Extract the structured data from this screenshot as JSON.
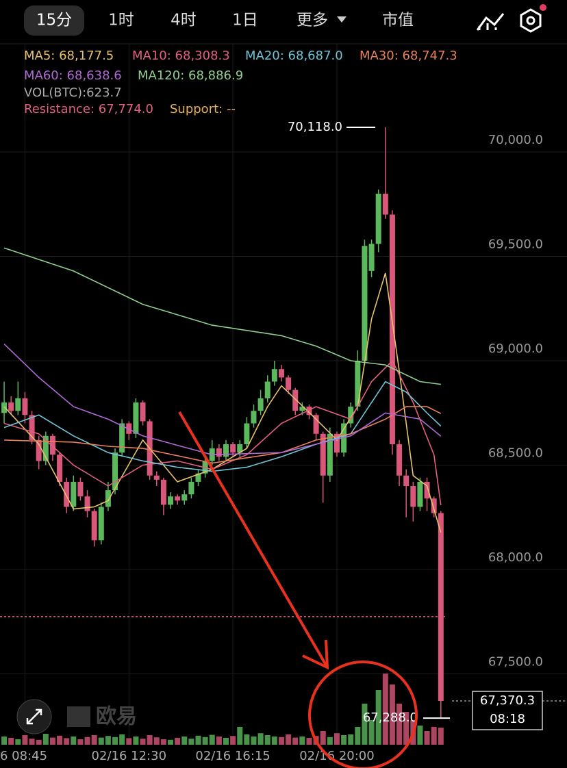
{
  "toolbar": {
    "tabs": [
      "15分",
      "1时",
      "4时",
      "1日",
      "更多",
      "市值"
    ]
  },
  "watermark": "欧易",
  "chart_data": {
    "type": "candlestick",
    "ylim": [
      67200,
      70180
    ],
    "yticks": [
      {
        "value": 70000,
        "label": "70,000.0"
      },
      {
        "value": 69500,
        "label": "69,500.0"
      },
      {
        "value": 69000,
        "label": "69,000.0"
      },
      {
        "value": 68500,
        "label": "68,500.0"
      },
      {
        "value": 68000,
        "label": "68,000.0"
      },
      {
        "value": 67500,
        "label": "67,500.0"
      }
    ],
    "xlim": [
      -0.6,
      64.6
    ],
    "xticks": [
      {
        "value": 3,
        "label": "6 08:45"
      },
      {
        "value": 18,
        "label": "02/16 12:30"
      },
      {
        "value": 33,
        "label": "02/16 16:15"
      },
      {
        "value": 48,
        "label": "02/16 20:00"
      }
    ],
    "up_color": "#5cb85c",
    "down_color": "#d9577a",
    "open": [
      68750,
      68800,
      68760,
      68820,
      68740,
      68620,
      68520,
      68640,
      68550,
      68420,
      68300,
      68420,
      68350,
      68280,
      68140,
      68300,
      68380,
      68560,
      68700,
      68650,
      68800,
      68710,
      68450,
      68430,
      68310,
      68350,
      68330,
      68360,
      68420,
      68460,
      68520,
      68580,
      68540,
      68600,
      68560,
      68600,
      68700,
      68760,
      68820,
      68900,
      68960,
      68920,
      68860,
      68760,
      68780,
      68740,
      68650,
      68450,
      68650,
      68560,
      68700,
      68780,
      69000,
      69430,
      69560,
      69800,
      69700,
      68600,
      68450,
      68400,
      68300,
      68420,
      68340,
      68270
    ],
    "high": [
      68900,
      68830,
      68900,
      68850,
      68760,
      68640,
      68660,
      68650,
      68560,
      68440,
      68450,
      68440,
      68380,
      68290,
      68320,
      68420,
      68580,
      68720,
      68710,
      68820,
      68810,
      68720,
      68470,
      68440,
      68370,
      68360,
      68380,
      68440,
      68480,
      68540,
      68620,
      68600,
      68620,
      68610,
      68620,
      68730,
      68790,
      68860,
      68930,
      69000,
      68980,
      68930,
      68870,
      68800,
      68790,
      68750,
      68660,
      68680,
      68660,
      68720,
      68800,
      69050,
      69580,
      69580,
      69820,
      70118,
      69720,
      68620,
      68480,
      68420,
      68440,
      68440,
      68350,
      68280
    ],
    "low": [
      68700,
      68740,
      68740,
      68700,
      68600,
      68480,
      68500,
      68520,
      68400,
      68270,
      68280,
      68330,
      68250,
      68110,
      68120,
      68280,
      68360,
      68540,
      68620,
      68630,
      68690,
      68430,
      68400,
      68260,
      68290,
      68310,
      68310,
      68340,
      68400,
      68440,
      68500,
      68520,
      68520,
      68540,
      68540,
      68580,
      68680,
      68740,
      68800,
      68880,
      68900,
      68840,
      68740,
      68740,
      68720,
      68620,
      68320,
      68420,
      68540,
      68540,
      68680,
      68760,
      68980,
      69400,
      69520,
      69680,
      68550,
      68400,
      68250,
      68230,
      68280,
      68280,
      68250,
      67288
    ],
    "close": [
      68800,
      68760,
      68820,
      68740,
      68620,
      68520,
      68640,
      68550,
      68420,
      68300,
      68420,
      68350,
      68280,
      68140,
      68300,
      68380,
      68560,
      68700,
      68650,
      68800,
      68710,
      68450,
      68430,
      68310,
      68350,
      68330,
      68360,
      68420,
      68460,
      68520,
      68580,
      68540,
      68600,
      68560,
      68600,
      68700,
      68760,
      68820,
      68900,
      68960,
      68920,
      68860,
      68760,
      68780,
      68740,
      68650,
      68450,
      68650,
      68560,
      68700,
      68780,
      69000,
      69550,
      69560,
      69800,
      69700,
      68600,
      68450,
      68400,
      68300,
      68420,
      68340,
      68270,
      67370.3
    ],
    "volume": [
      300,
      250,
      200,
      350,
      220,
      180,
      400,
      260,
      330,
      240,
      300,
      200,
      280,
      350,
      260,
      320,
      280,
      380,
      240,
      300,
      220,
      350,
      270,
      200,
      180,
      250,
      300,
      220,
      330,
      280,
      360,
      300,
      250,
      320,
      650,
      380,
      300,
      420,
      350,
      300,
      280,
      380,
      260,
      300,
      250,
      320,
      500,
      280,
      420,
      350,
      380,
      650,
      1500,
      900,
      2000,
      2600,
      2200,
      1500,
      1200,
      900,
      700,
      500,
      650,
      623.7
    ],
    "volume_label": "VOL(BTC):623.7",
    "series": [
      {
        "name": "MA5: 68,177.5",
        "color": "#e8c36b",
        "x": [
          0,
          5,
          10,
          13,
          15,
          20,
          25,
          30,
          35,
          38,
          40,
          45,
          48,
          51,
          53,
          55,
          57,
          59,
          61,
          63
        ],
        "values": [
          68780,
          68600,
          68290,
          68300,
          68330,
          68620,
          68420,
          68480,
          68580,
          68780,
          68880,
          68720,
          68620,
          68780,
          69200,
          69420,
          68950,
          68450,
          68400,
          68177.5
        ]
      },
      {
        "name": "MA10: 68,308.3",
        "color": "#e3607e",
        "x": [
          0,
          5,
          10,
          15,
          20,
          25,
          30,
          35,
          40,
          45,
          50,
          53,
          56,
          59,
          62,
          63
        ],
        "values": [
          68700,
          68650,
          68500,
          68400,
          68500,
          68520,
          68480,
          68550,
          68700,
          68780,
          68720,
          68900,
          69000,
          68800,
          68550,
          68308.3
        ]
      },
      {
        "name": "MA20: 68,687.0",
        "color": "#6fc5d8",
        "x": [
          0,
          5,
          10,
          15,
          20,
          25,
          30,
          35,
          40,
          45,
          50,
          55,
          58,
          61,
          63
        ],
        "values": [
          68680,
          68740,
          68640,
          68560,
          68520,
          68490,
          68470,
          68490,
          68540,
          68600,
          68650,
          68900,
          68850,
          68750,
          68687
        ]
      },
      {
        "name": "MA30: 68,747.3",
        "color": "#e8805a",
        "x": [
          0,
          10,
          15,
          20,
          30,
          40,
          45,
          50,
          55,
          58,
          61,
          63
        ],
        "values": [
          68620,
          68610,
          68590,
          68580,
          68510,
          68560,
          68620,
          68650,
          68720,
          68780,
          68780,
          68747.3
        ]
      },
      {
        "name": "MA60: 68,638.6",
        "color": "#b06ad6",
        "x": [
          0,
          5,
          10,
          15,
          20,
          30,
          40,
          50,
          55,
          60,
          63
        ],
        "values": [
          69080,
          68920,
          68780,
          68720,
          68640,
          68550,
          68560,
          68640,
          68750,
          68720,
          68638.6
        ]
      },
      {
        "name": "MA120: 68,886.9",
        "color": "#8fcf8f",
        "x": [
          0,
          10,
          20,
          30,
          40,
          45,
          50,
          55,
          60,
          63
        ],
        "values": [
          69540,
          69430,
          69270,
          69170,
          69120,
          69070,
          69000,
          68980,
          68900,
          68886.9
        ]
      }
    ],
    "resistance": {
      "label": "Resistance: 67,774.0",
      "value": 67774,
      "color": "#e06080"
    },
    "support": {
      "label": "Support: --",
      "color": "#e8b060"
    },
    "high_marker": {
      "value": 70118,
      "label": "70,118.0"
    },
    "low_marker": {
      "value": 67288,
      "label": "67,288.0"
    },
    "last_price": {
      "value": 67370.3,
      "label": "67,370.3",
      "countdown": "08:18"
    }
  }
}
